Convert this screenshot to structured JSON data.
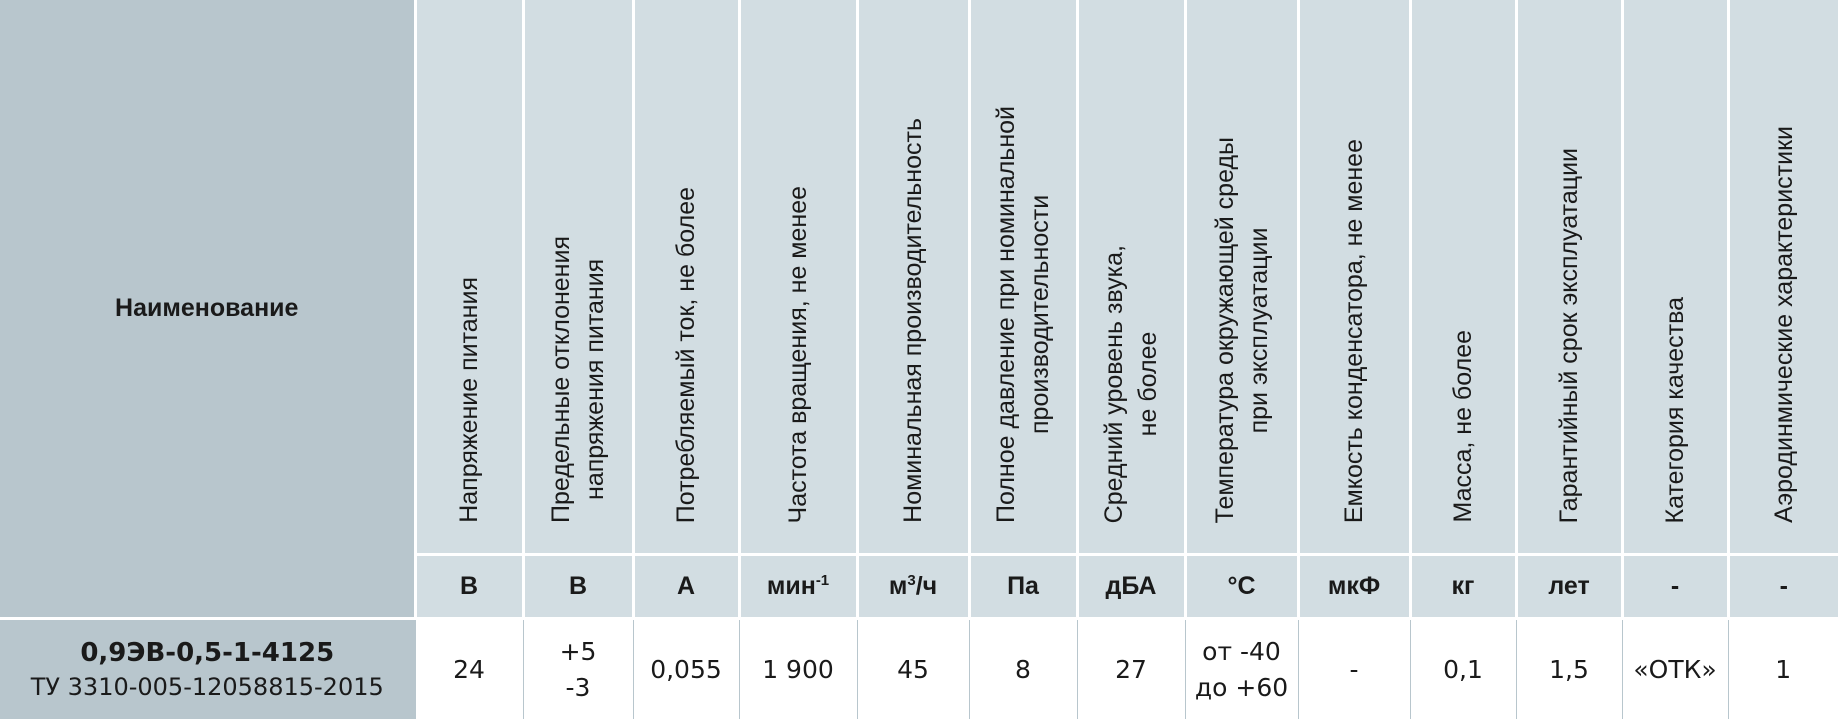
{
  "name_header": "Наименование",
  "columns": [
    {
      "header": [
        "Напряжение  питания"
      ],
      "unit": "В",
      "value": [
        "24"
      ]
    },
    {
      "header": [
        "Предельные отклонения",
        "напряжения питания"
      ],
      "unit": "В",
      "value": [
        "+5",
        "-3"
      ]
    },
    {
      "header": [
        "Потребляемый ток, не более"
      ],
      "unit": "А",
      "value": [
        "0,055"
      ]
    },
    {
      "header": [
        "Частота вращения, не менее"
      ],
      "unit": "мин",
      "unit_sup": "-1",
      "value": [
        "1 900"
      ]
    },
    {
      "header": [
        "Номинальная производительность"
      ],
      "unit": "м",
      "unit_sup": "3",
      "unit_tail": "/ч",
      "value": [
        "45"
      ]
    },
    {
      "header": [
        "Полное давление при номинальной",
        "производительности"
      ],
      "unit": "Па",
      "value": [
        "8"
      ]
    },
    {
      "header": [
        "Средний уровень звука,",
        "не более"
      ],
      "unit": "дБА",
      "value": [
        "27"
      ]
    },
    {
      "header": [
        "Температура окружающей среды",
        "при эксплуатации"
      ],
      "unit": "°С",
      "value": [
        "от -40",
        "до +60"
      ]
    },
    {
      "header": [
        "Емкость конденсатора, не менее"
      ],
      "unit": "мкФ",
      "value": [
        "-"
      ]
    },
    {
      "header": [
        "Масса, не более"
      ],
      "unit": "кг",
      "value": [
        "0,1"
      ]
    },
    {
      "header": [
        "Гарантийный срок эксплуатации"
      ],
      "unit": "лет",
      "value": [
        "1,5"
      ]
    },
    {
      "header": [
        "Категория качества"
      ],
      "unit": "-",
      "value": [
        "«ОТК»"
      ]
    },
    {
      "header": [
        "Аэродинмические характеристики"
      ],
      "unit": "-",
      "value": [
        "1"
      ]
    }
  ],
  "row": {
    "model": "0,9ЭВ-0,5-1-4125",
    "tu": "ТУ 3310-005-12058815-2015"
  }
}
